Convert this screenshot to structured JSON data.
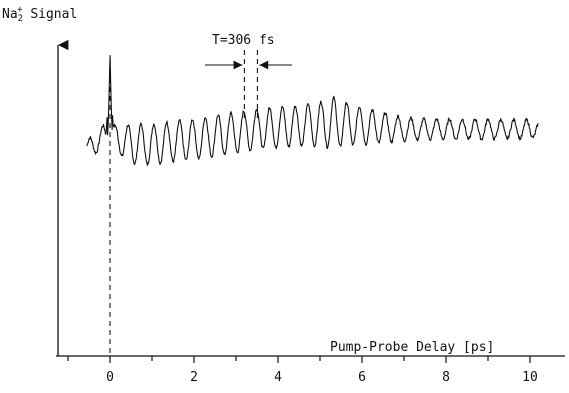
{
  "chart_data": {
    "type": "line",
    "ylabel_main": "Na",
    "ylabel_sub": "2",
    "ylabel_sup": "+",
    "ylabel_rest": " Signal",
    "xlabel": "Pump-Probe Delay [ps]",
    "xlim": [
      -1.3,
      11.1
    ],
    "ylim": [
      0,
      1
    ],
    "x_ticks": [
      0,
      2,
      4,
      6,
      8,
      10
    ],
    "x_tick_labels": [
      "0",
      "2",
      "4",
      "6",
      "8",
      "10"
    ],
    "x_minor_ticks": [
      -1,
      1,
      3,
      5,
      7,
      9,
      11
    ],
    "grid": false,
    "annotation": {
      "text": "T=306 fs",
      "period_start": 3.2,
      "period_end": 3.51
    },
    "zero_marker": 0,
    "series": [
      {
        "x": [
          -0.55,
          -0.4,
          -0.25,
          -0.1,
          0.0,
          0.08,
          0.2,
          0.35,
          0.5,
          0.65,
          0.8,
          1.0,
          1.3,
          1.6,
          2.0,
          2.5,
          3.0,
          3.5,
          4.0,
          4.5,
          5.0,
          5.3,
          5.6,
          6.0,
          6.5,
          7.0,
          7.5,
          8.0,
          8.5,
          9.0,
          9.5,
          10.0,
          10.2
        ],
        "envelope_mid": [
          0.62,
          0.63,
          0.64,
          0.66,
          0.89,
          0.66,
          0.64,
          0.64,
          0.63,
          0.63,
          0.63,
          0.63,
          0.635,
          0.64,
          0.645,
          0.655,
          0.665,
          0.675,
          0.68,
          0.685,
          0.69,
          0.695,
          0.69,
          0.685,
          0.68,
          0.675,
          0.675,
          0.675,
          0.675,
          0.675,
          0.675,
          0.675,
          0.675
        ],
        "amplitude": [
          0.02,
          0.03,
          0.03,
          0.04,
          0.0,
          0.03,
          0.04,
          0.05,
          0.055,
          0.06,
          0.06,
          0.06,
          0.06,
          0.06,
          0.06,
          0.06,
          0.06,
          0.06,
          0.06,
          0.06,
          0.065,
          0.075,
          0.065,
          0.055,
          0.045,
          0.035,
          0.03,
          0.03,
          0.03,
          0.03,
          0.028,
          0.028,
          0.02
        ],
        "period_ps": 0.306
      }
    ]
  }
}
